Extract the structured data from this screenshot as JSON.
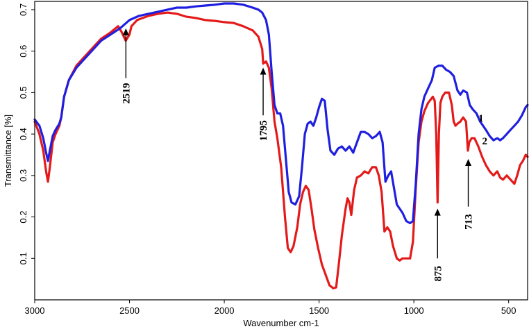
{
  "chart_data": {
    "type": "line",
    "xlabel": "Wavenumber cm-1",
    "ylabel": "Transmittance [%]",
    "xlim": [
      3000,
      400
    ],
    "ylim": [
      0,
      0.72
    ],
    "x_ticks": [
      3000,
      2500,
      2000,
      1500,
      1000,
      500
    ],
    "y_ticks": [
      0.1,
      0.2,
      0.3,
      0.4,
      0.5,
      0.6,
      0.7
    ],
    "grid": false,
    "series": [
      {
        "name": "1",
        "color": "#1f1fe0",
        "points": [
          [
            3000,
            0.435
          ],
          [
            2975,
            0.42
          ],
          [
            2955,
            0.39
          ],
          [
            2940,
            0.355
          ],
          [
            2930,
            0.335
          ],
          [
            2920,
            0.36
          ],
          [
            2905,
            0.395
          ],
          [
            2890,
            0.41
          ],
          [
            2870,
            0.425
          ],
          [
            2860,
            0.44
          ],
          [
            2845,
            0.49
          ],
          [
            2820,
            0.53
          ],
          [
            2780,
            0.56
          ],
          [
            2740,
            0.58
          ],
          [
            2700,
            0.6
          ],
          [
            2650,
            0.625
          ],
          [
            2600,
            0.64
          ],
          [
            2550,
            0.655
          ],
          [
            2500,
            0.675
          ],
          [
            2450,
            0.685
          ],
          [
            2400,
            0.69
          ],
          [
            2350,
            0.695
          ],
          [
            2300,
            0.7
          ],
          [
            2250,
            0.705
          ],
          [
            2200,
            0.705
          ],
          [
            2150,
            0.708
          ],
          [
            2100,
            0.71
          ],
          [
            2050,
            0.712
          ],
          [
            2000,
            0.715
          ],
          [
            1950,
            0.715
          ],
          [
            1900,
            0.712
          ],
          [
            1850,
            0.705
          ],
          [
            1820,
            0.7
          ],
          [
            1800,
            0.693
          ],
          [
            1780,
            0.675
          ],
          [
            1765,
            0.64
          ],
          [
            1750,
            0.55
          ],
          [
            1735,
            0.47
          ],
          [
            1720,
            0.45
          ],
          [
            1705,
            0.45
          ],
          [
            1690,
            0.42
          ],
          [
            1675,
            0.34
          ],
          [
            1660,
            0.26
          ],
          [
            1645,
            0.235
          ],
          [
            1625,
            0.23
          ],
          [
            1605,
            0.25
          ],
          [
            1590,
            0.32
          ],
          [
            1575,
            0.4
          ],
          [
            1560,
            0.425
          ],
          [
            1545,
            0.43
          ],
          [
            1530,
            0.42
          ],
          [
            1515,
            0.44
          ],
          [
            1500,
            0.465
          ],
          [
            1485,
            0.485
          ],
          [
            1470,
            0.48
          ],
          [
            1455,
            0.41
          ],
          [
            1440,
            0.36
          ],
          [
            1420,
            0.35
          ],
          [
            1400,
            0.365
          ],
          [
            1380,
            0.37
          ],
          [
            1360,
            0.36
          ],
          [
            1340,
            0.37
          ],
          [
            1320,
            0.355
          ],
          [
            1300,
            0.38
          ],
          [
            1280,
            0.405
          ],
          [
            1260,
            0.405
          ],
          [
            1240,
            0.4
          ],
          [
            1220,
            0.39
          ],
          [
            1200,
            0.395
          ],
          [
            1180,
            0.405
          ],
          [
            1165,
            0.38
          ],
          [
            1150,
            0.285
          ],
          [
            1135,
            0.3
          ],
          [
            1120,
            0.31
          ],
          [
            1105,
            0.27
          ],
          [
            1090,
            0.23
          ],
          [
            1075,
            0.22
          ],
          [
            1060,
            0.21
          ],
          [
            1040,
            0.19
          ],
          [
            1020,
            0.185
          ],
          [
            1005,
            0.19
          ],
          [
            990,
            0.28
          ],
          [
            975,
            0.4
          ],
          [
            960,
            0.46
          ],
          [
            945,
            0.49
          ],
          [
            925,
            0.51
          ],
          [
            905,
            0.53
          ],
          [
            890,
            0.56
          ],
          [
            870,
            0.565
          ],
          [
            850,
            0.565
          ],
          [
            830,
            0.555
          ],
          [
            810,
            0.55
          ],
          [
            790,
            0.54
          ],
          [
            770,
            0.505
          ],
          [
            755,
            0.495
          ],
          [
            740,
            0.505
          ],
          [
            720,
            0.5
          ],
          [
            705,
            0.47
          ],
          [
            690,
            0.46
          ],
          [
            670,
            0.45
          ],
          [
            650,
            0.43
          ],
          [
            620,
            0.41
          ],
          [
            600,
            0.395
          ],
          [
            580,
            0.385
          ],
          [
            560,
            0.39
          ],
          [
            545,
            0.385
          ],
          [
            530,
            0.39
          ],
          [
            510,
            0.4
          ],
          [
            490,
            0.41
          ],
          [
            470,
            0.42
          ],
          [
            450,
            0.43
          ],
          [
            430,
            0.445
          ],
          [
            410,
            0.465
          ],
          [
            400,
            0.47
          ]
        ]
      },
      {
        "name": "2",
        "color": "#e41a1a",
        "points": [
          [
            3000,
            0.43
          ],
          [
            2975,
            0.4
          ],
          [
            2955,
            0.36
          ],
          [
            2940,
            0.31
          ],
          [
            2930,
            0.285
          ],
          [
            2920,
            0.32
          ],
          [
            2905,
            0.38
          ],
          [
            2890,
            0.4
          ],
          [
            2870,
            0.42
          ],
          [
            2860,
            0.44
          ],
          [
            2845,
            0.49
          ],
          [
            2820,
            0.53
          ],
          [
            2780,
            0.565
          ],
          [
            2740,
            0.585
          ],
          [
            2700,
            0.605
          ],
          [
            2650,
            0.63
          ],
          [
            2600,
            0.645
          ],
          [
            2560,
            0.66
          ],
          [
            2540,
            0.645
          ],
          [
            2520,
            0.625
          ],
          [
            2500,
            0.64
          ],
          [
            2490,
            0.66
          ],
          [
            2460,
            0.675
          ],
          [
            2400,
            0.685
          ],
          [
            2350,
            0.69
          ],
          [
            2300,
            0.693
          ],
          [
            2250,
            0.69
          ],
          [
            2200,
            0.683
          ],
          [
            2150,
            0.68
          ],
          [
            2100,
            0.675
          ],
          [
            2050,
            0.673
          ],
          [
            2000,
            0.67
          ],
          [
            1950,
            0.668
          ],
          [
            1900,
            0.66
          ],
          [
            1850,
            0.65
          ],
          [
            1820,
            0.635
          ],
          [
            1800,
            0.605
          ],
          [
            1795,
            0.57
          ],
          [
            1780,
            0.575
          ],
          [
            1765,
            0.56
          ],
          [
            1750,
            0.51
          ],
          [
            1735,
            0.43
          ],
          [
            1720,
            0.39
          ],
          [
            1700,
            0.32
          ],
          [
            1680,
            0.2
          ],
          [
            1665,
            0.125
          ],
          [
            1650,
            0.115
          ],
          [
            1635,
            0.13
          ],
          [
            1615,
            0.175
          ],
          [
            1600,
            0.23
          ],
          [
            1585,
            0.26
          ],
          [
            1570,
            0.275
          ],
          [
            1555,
            0.265
          ],
          [
            1540,
            0.22
          ],
          [
            1525,
            0.17
          ],
          [
            1505,
            0.125
          ],
          [
            1485,
            0.085
          ],
          [
            1465,
            0.06
          ],
          [
            1445,
            0.035
          ],
          [
            1425,
            0.028
          ],
          [
            1410,
            0.03
          ],
          [
            1395,
            0.09
          ],
          [
            1380,
            0.155
          ],
          [
            1360,
            0.22
          ],
          [
            1350,
            0.245
          ],
          [
            1340,
            0.235
          ],
          [
            1330,
            0.205
          ],
          [
            1315,
            0.265
          ],
          [
            1300,
            0.295
          ],
          [
            1280,
            0.3
          ],
          [
            1260,
            0.31
          ],
          [
            1240,
            0.305
          ],
          [
            1220,
            0.32
          ],
          [
            1200,
            0.32
          ],
          [
            1185,
            0.3
          ],
          [
            1170,
            0.26
          ],
          [
            1155,
            0.165
          ],
          [
            1140,
            0.175
          ],
          [
            1125,
            0.165
          ],
          [
            1110,
            0.13
          ],
          [
            1090,
            0.1
          ],
          [
            1075,
            0.095
          ],
          [
            1060,
            0.1
          ],
          [
            1040,
            0.1
          ],
          [
            1020,
            0.1
          ],
          [
            1005,
            0.14
          ],
          [
            990,
            0.27
          ],
          [
            975,
            0.38
          ],
          [
            960,
            0.43
          ],
          [
            945,
            0.455
          ],
          [
            925,
            0.475
          ],
          [
            900,
            0.49
          ],
          [
            890,
            0.48
          ],
          [
            882,
            0.4
          ],
          [
            875,
            0.235
          ],
          [
            868,
            0.4
          ],
          [
            860,
            0.475
          ],
          [
            850,
            0.49
          ],
          [
            835,
            0.5
          ],
          [
            815,
            0.5
          ],
          [
            800,
            0.47
          ],
          [
            790,
            0.43
          ],
          [
            780,
            0.42
          ],
          [
            770,
            0.425
          ],
          [
            755,
            0.43
          ],
          [
            740,
            0.44
          ],
          [
            725,
            0.43
          ],
          [
            715,
            0.36
          ],
          [
            708,
            0.38
          ],
          [
            695,
            0.39
          ],
          [
            680,
            0.39
          ],
          [
            660,
            0.37
          ],
          [
            640,
            0.345
          ],
          [
            620,
            0.325
          ],
          [
            600,
            0.31
          ],
          [
            580,
            0.3
          ],
          [
            560,
            0.31
          ],
          [
            545,
            0.295
          ],
          [
            530,
            0.29
          ],
          [
            510,
            0.3
          ],
          [
            490,
            0.29
          ],
          [
            470,
            0.28
          ],
          [
            455,
            0.3
          ],
          [
            440,
            0.325
          ],
          [
            425,
            0.335
          ],
          [
            410,
            0.35
          ],
          [
            400,
            0.345
          ]
        ]
      }
    ],
    "annotations": [
      {
        "label": "2519",
        "x": 2519,
        "kind": "arrow-up",
        "y_tip": 0.655,
        "y_tail": 0.535
      },
      {
        "label": "1795",
        "x": 1795,
        "kind": "arrow-up",
        "y_tip": 0.56,
        "y_tail": 0.445
      },
      {
        "label": "875",
        "x": 875,
        "kind": "arrow-up",
        "y_tip": 0.22,
        "y_tail": 0.1
      },
      {
        "label": "713",
        "x": 713,
        "kind": "arrow-up",
        "y_tip": 0.34,
        "y_tail": 0.225
      }
    ],
    "series_labels": [
      {
        "label": "1",
        "x": 660,
        "y": 0.43
      },
      {
        "label": "2",
        "x": 640,
        "y": 0.375
      }
    ]
  }
}
